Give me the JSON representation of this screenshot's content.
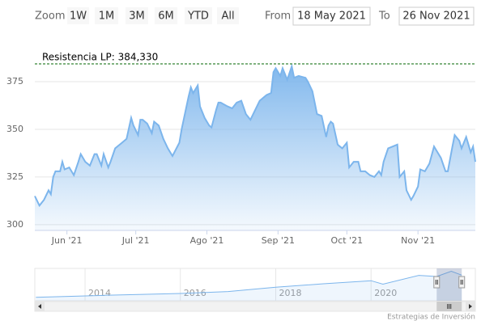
{
  "chart_data": {
    "type": "area",
    "color": "#7cb5ec",
    "range_selector": {
      "zoom_label": "Zoom",
      "buttons": [
        "1W",
        "1M",
        "3M",
        "6M",
        "YTD",
        "All"
      ],
      "from_label": "From",
      "from": "18 May 2021",
      "to_label": "To",
      "to": "26 Nov 2021"
    },
    "plot_lines": [
      {
        "value": 384.33,
        "label": "Resistencia LP: 384,330",
        "color": "#006400"
      }
    ],
    "x": [
      "2021-05-18",
      "2021-05-20",
      "2021-05-22",
      "2021-05-24",
      "2021-05-25",
      "2021-05-26",
      "2021-05-27",
      "2021-05-29",
      "2021-05-30",
      "2021-05-31",
      "2021-06-02",
      "2021-06-04",
      "2021-06-06",
      "2021-06-07",
      "2021-06-09",
      "2021-06-11",
      "2021-06-13",
      "2021-06-14",
      "2021-06-16",
      "2021-06-17",
      "2021-06-19",
      "2021-06-20",
      "2021-06-22",
      "2021-06-25",
      "2021-06-27",
      "2021-06-29",
      "2021-06-30",
      "2021-07-02",
      "2021-07-03",
      "2021-07-04",
      "2021-07-06",
      "2021-07-08",
      "2021-07-09",
      "2021-07-11",
      "2021-07-13",
      "2021-07-15",
      "2021-07-17",
      "2021-07-20",
      "2021-07-21",
      "2021-07-24",
      "2021-07-25",
      "2021-07-26",
      "2021-07-28",
      "2021-07-29",
      "2021-07-31",
      "2021-08-02",
      "2021-08-03",
      "2021-08-05",
      "2021-08-06",
      "2021-08-07",
      "2021-08-10",
      "2021-08-12",
      "2021-08-14",
      "2021-08-16",
      "2021-08-18",
      "2021-08-20",
      "2021-08-22",
      "2021-08-24",
      "2021-08-27",
      "2021-08-29",
      "2021-08-30",
      "2021-08-31",
      "2021-09-02",
      "2021-09-03",
      "2021-09-05",
      "2021-09-07",
      "2021-09-08",
      "2021-09-10",
      "2021-09-13",
      "2021-09-14",
      "2021-09-16",
      "2021-09-18",
      "2021-09-20",
      "2021-09-22",
      "2021-09-23",
      "2021-09-24",
      "2021-09-25",
      "2021-09-27",
      "2021-09-28",
      "2021-09-29",
      "2021-10-01",
      "2021-10-02",
      "2021-10-04",
      "2021-10-06",
      "2021-10-07",
      "2021-10-09",
      "2021-10-11",
      "2021-10-13",
      "2021-10-15",
      "2021-10-16",
      "2021-10-17",
      "2021-10-19",
      "2021-10-21",
      "2021-10-23",
      "2021-10-24",
      "2021-10-26",
      "2021-10-27",
      "2021-10-29",
      "2021-10-30",
      "2021-11-01",
      "2021-11-02",
      "2021-11-04",
      "2021-11-06",
      "2021-11-08",
      "2021-11-09",
      "2021-11-11",
      "2021-11-13",
      "2021-11-14",
      "2021-11-16",
      "2021-11-17",
      "2021-11-19",
      "2021-11-20",
      "2021-11-22",
      "2021-11-23",
      "2021-11-24",
      "2021-11-25",
      "2021-11-26"
    ],
    "values": [
      315,
      310,
      313,
      318,
      316,
      325,
      328,
      328,
      333,
      329,
      330,
      326,
      333,
      337,
      333,
      331,
      337,
      337,
      331,
      337,
      330,
      333,
      340,
      343,
      345,
      356,
      352,
      347,
      355,
      355,
      353,
      348,
      354,
      352,
      345,
      340,
      336,
      343,
      350,
      367,
      372,
      369,
      373,
      362,
      356,
      352,
      351,
      360,
      364,
      364,
      362,
      361,
      364,
      365,
      358,
      355,
      360,
      365,
      368,
      369,
      380,
      382,
      378,
      382,
      376,
      383,
      377,
      378,
      377,
      375,
      370,
      358,
      357,
      346,
      352,
      354,
      353,
      342,
      341,
      340,
      343,
      330,
      333,
      333,
      328,
      328,
      326,
      325,
      328,
      326,
      333,
      340,
      341,
      342,
      325,
      328,
      318,
      313,
      315,
      320,
      329,
      328,
      332,
      341,
      339,
      335,
      328,
      328,
      341,
      347,
      344,
      340,
      346,
      342,
      338,
      341,
      333
    ],
    "xlim": [
      "2021-05-18",
      "2021-11-26"
    ],
    "xticks": [
      {
        "value": "2021-06-01",
        "label": "Jun '21"
      },
      {
        "value": "2021-07-01",
        "label": "Jul '21"
      },
      {
        "value": "2021-08-01",
        "label": "Ago '21"
      },
      {
        "value": "2021-09-01",
        "label": "Sep '21"
      },
      {
        "value": "2021-10-01",
        "label": "Oct '21"
      },
      {
        "value": "2021-11-01",
        "label": "Nov '21"
      }
    ],
    "ylim": [
      297,
      386
    ],
    "yticks": [
      300,
      325,
      350,
      375
    ],
    "grid": true,
    "navigator": {
      "x": [
        "2012-12-20",
        "2014-06-01",
        "2016-01-01",
        "2017-01-01",
        "2018-01-01",
        "2019-01-01",
        "2020-01-01",
        "2020-04-01",
        "2021-01-01",
        "2021-05-18",
        "2021-09-07",
        "2021-11-26"
      ],
      "values": [
        45,
        70,
        95,
        120,
        175,
        220,
        260,
        215,
        330,
        315,
        383,
        333
      ],
      "xlim": [
        "2012-12-12",
        "2022-03-10"
      ],
      "ylim": [
        0,
        420
      ],
      "xticks": [
        {
          "value": "2014-01-01",
          "label": "2014"
        },
        {
          "value": "2016-01-01",
          "label": "2016"
        },
        {
          "value": "2018-01-01",
          "label": "2018"
        },
        {
          "value": "2020-01-01",
          "label": "2020"
        }
      ]
    },
    "credits": "Estrategias de Inversión"
  }
}
